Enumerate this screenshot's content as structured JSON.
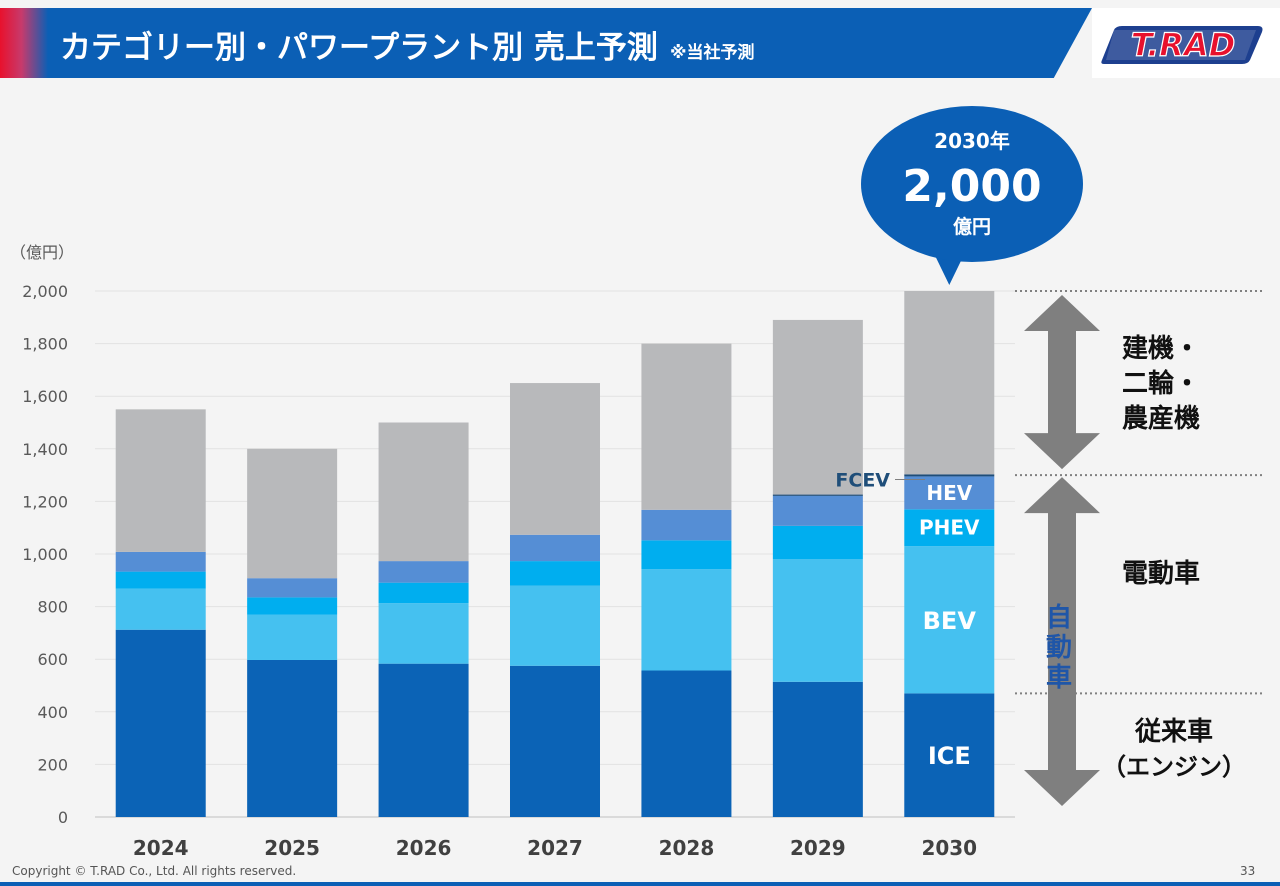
{
  "header": {
    "title": "カテゴリー別・パワープラント別 売上予測",
    "note": "※当社予測"
  },
  "logo": {
    "text": "T.RAD"
  },
  "chart_data": {
    "type": "bar",
    "stacked": true,
    "unit_label": "（億円）",
    "categories": [
      "2024",
      "2025",
      "2026",
      "2027",
      "2028",
      "2029",
      "2030"
    ],
    "ylim": [
      0,
      2000
    ],
    "yticks": [
      0,
      200,
      400,
      600,
      800,
      1000,
      1200,
      1400,
      1600,
      1800,
      2000
    ],
    "ytick_labels": [
      "0",
      "200",
      "400",
      "600",
      "800",
      "1,000",
      "1,200",
      "1,400",
      "1,600",
      "1,800",
      "2,000"
    ],
    "grid": true,
    "series": [
      {
        "name": "ICE",
        "color": "#0b63b6",
        "values": [
          712,
          597,
          583,
          575,
          557,
          514,
          470
        ]
      },
      {
        "name": "BEV",
        "color": "#45c1f0",
        "values": [
          156,
          173,
          230,
          305,
          385,
          467,
          560
        ]
      },
      {
        "name": "PHEV",
        "color": "#00aeef",
        "values": [
          65,
          65,
          78,
          93,
          110,
          126,
          140
        ]
      },
      {
        "name": "HEV",
        "color": "#558ed5",
        "values": [
          75,
          73,
          82,
          100,
          116,
          114,
          125
        ]
      },
      {
        "name": "FCEV",
        "color": "#1f4e79",
        "values": [
          0,
          0,
          0,
          0,
          0,
          5,
          8
        ]
      },
      {
        "name": "",
        "color": "#b8b9bb",
        "values": [
          542,
          492,
          527,
          577,
          632,
          664,
          697
        ]
      }
    ],
    "series_labels": [
      "ICE",
      "BEV",
      "PHEV",
      "HEV",
      "FCEV"
    ],
    "callout": {
      "line1": "2030年",
      "value": "2,000",
      "unit": "億円",
      "category": "2030",
      "y": 2000
    },
    "right_labels": [
      {
        "lines": [
          "建機・",
          "二輪・",
          "農産機"
        ]
      },
      {
        "lines": [
          "電動車"
        ]
      },
      {
        "lines": [
          "従来車",
          "（エンジン）"
        ]
      }
    ],
    "vertical_label": [
      "自",
      "動",
      "車"
    ],
    "reference_lines": [
      2000,
      1300,
      470
    ]
  },
  "footer": {
    "copyright": "Copyright © T.RAD Co., Ltd. All rights reserved.",
    "page": "33"
  }
}
